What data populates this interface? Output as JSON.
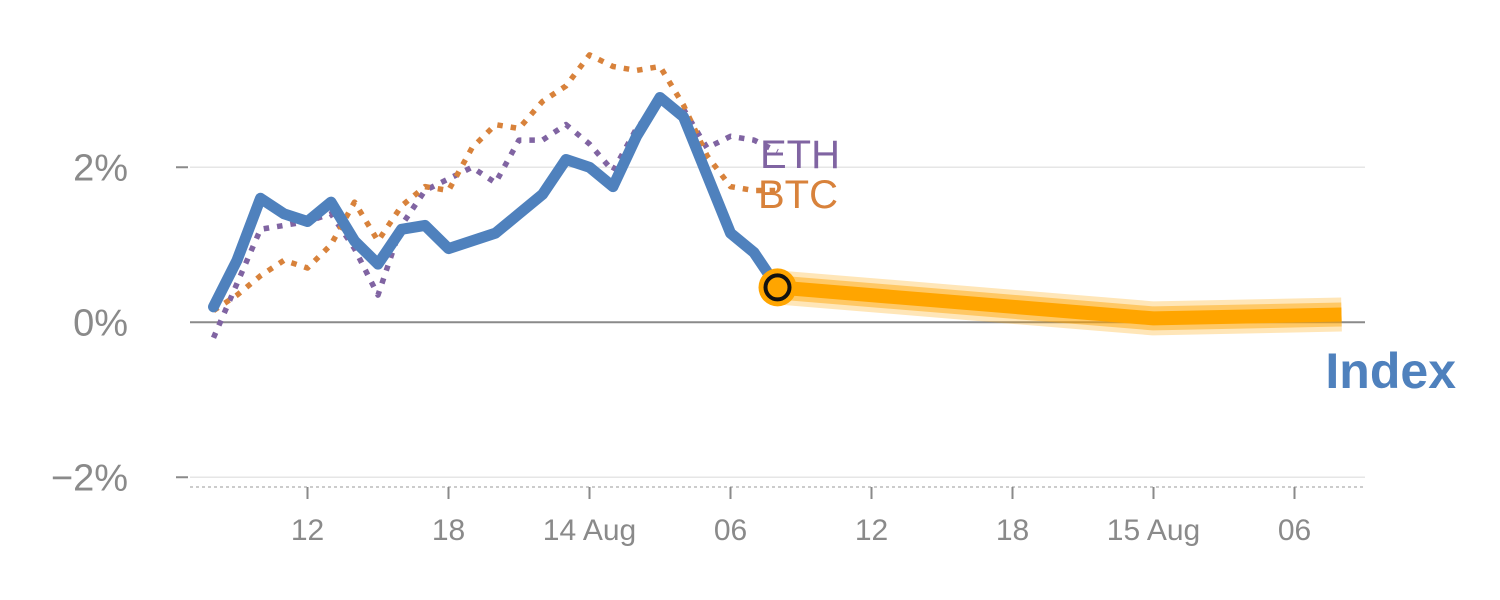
{
  "chart_data": {
    "type": "line",
    "title": "",
    "xlabel": "",
    "ylabel": "",
    "x_start": "2024-08-13T08:00",
    "x_step_hours": 1,
    "xlim": [
      "2024-08-13T07:00",
      "2024-08-15T09:00"
    ],
    "ylim": [
      -2.1,
      3.9
    ],
    "y_ticks": [
      -2,
      0,
      2
    ],
    "y_tick_labels": [
      "−2%",
      "0%",
      "2%"
    ],
    "x_ticks": [
      "2024-08-13T12:00",
      "2024-08-13T18:00",
      "2024-08-14T00:00",
      "2024-08-14T06:00",
      "2024-08-14T12:00",
      "2024-08-14T18:00",
      "2024-08-15T00:00",
      "2024-08-15T06:00"
    ],
    "x_tick_labels": [
      "12",
      "18",
      "14 Aug",
      "06",
      "12",
      "18",
      "15 Aug",
      "06"
    ],
    "grid": true,
    "series": [
      {
        "name": "Index",
        "style": "solid",
        "color": "#4f81bd",
        "values": [
          0.2,
          0.8,
          1.6,
          1.4,
          1.3,
          1.55,
          1.05,
          0.75,
          1.2,
          1.25,
          0.95,
          1.05,
          1.15,
          1.4,
          1.65,
          2.1,
          2.0,
          1.75,
          2.4,
          2.9,
          2.65,
          1.9,
          1.15,
          0.9,
          0.45
        ]
      },
      {
        "name": "ETH",
        "style": "dotted",
        "color": "#8064a2",
        "values": [
          -0.2,
          0.5,
          1.2,
          1.25,
          1.3,
          1.4,
          0.95,
          0.35,
          1.25,
          1.7,
          1.85,
          2.0,
          1.8,
          2.35,
          2.35,
          2.55,
          2.3,
          1.95,
          2.5,
          2.85,
          2.75,
          2.25,
          2.4,
          2.35,
          2.2
        ]
      },
      {
        "name": "BTC",
        "style": "dotted",
        "color": "#d8823b",
        "values": [
          0.15,
          0.35,
          0.6,
          0.8,
          0.7,
          1.0,
          1.55,
          1.05,
          1.5,
          1.75,
          1.7,
          2.25,
          2.55,
          2.5,
          2.85,
          3.05,
          3.45,
          3.3,
          3.25,
          3.3,
          2.8,
          2.15,
          1.75,
          1.7,
          1.7
        ]
      },
      {
        "name": "",
        "style": "forecast",
        "color": "#ffa500",
        "x": [
          "2024-08-14T08:00",
          "2024-08-15T00:00",
          "2024-08-15T08:00"
        ],
        "values": [
          0.45,
          0.05,
          0.1
        ]
      }
    ],
    "marker": {
      "x": "2024-08-14T08:00",
      "value": 0.45
    },
    "labels": {
      "index": "Index",
      "eth": "ETH",
      "btc": "BTC"
    }
  }
}
